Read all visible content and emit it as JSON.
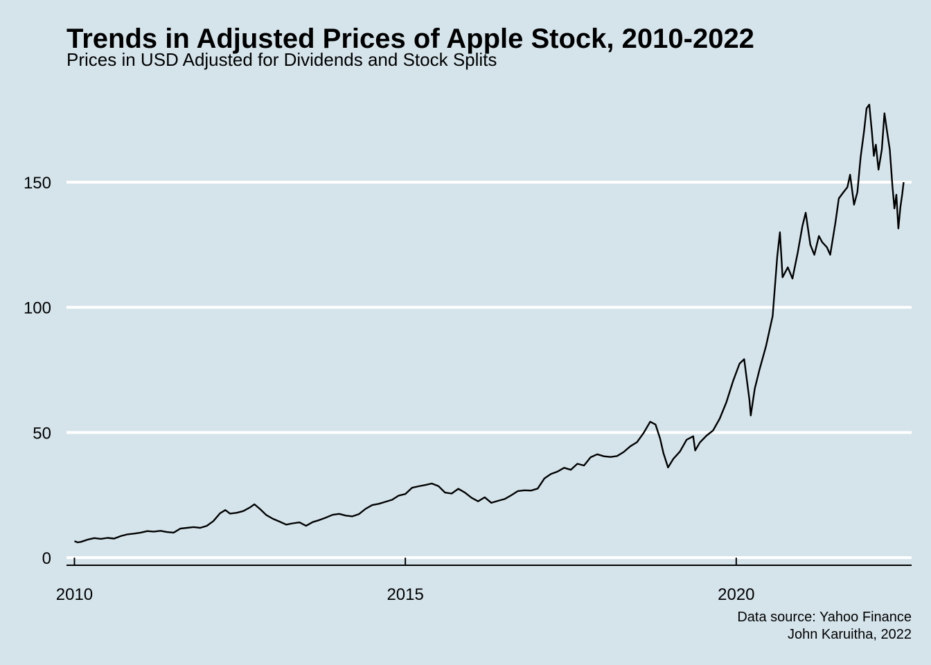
{
  "colors": {
    "background": "#d5e4eb",
    "gridline": "#ffffff",
    "line": "#000000"
  },
  "chart_data": {
    "type": "line",
    "title": "Trends in Adjusted Prices of Apple Stock, 2010-2022",
    "subtitle": "Prices in USD Adjusted for Dividends and Stock Splits",
    "caption_lines": [
      "Data source: Yahoo Finance",
      "John Karuitha, 2022"
    ],
    "xlabel": "",
    "ylabel": "",
    "x_scale": "date (year)",
    "xlim": [
      2009.88,
      2022.65
    ],
    "ylim": [
      0,
      180
    ],
    "x_ticks": [
      2010,
      2015,
      2020
    ],
    "x_tick_labels": [
      "2010",
      "2015",
      "2020"
    ],
    "y_ticks": [
      0,
      50,
      100,
      150
    ],
    "y_tick_labels": [
      "0",
      "50",
      "100",
      "150"
    ],
    "grid": "horizontal major gridlines",
    "legend": "none",
    "series": [
      {
        "points": [
          [
            2010.0,
            6.6
          ],
          [
            2010.05,
            6.1
          ],
          [
            2010.1,
            6.3
          ],
          [
            2010.2,
            7.2
          ],
          [
            2010.3,
            7.8
          ],
          [
            2010.4,
            7.5
          ],
          [
            2010.5,
            7.9
          ],
          [
            2010.6,
            7.6
          ],
          [
            2010.7,
            8.6
          ],
          [
            2010.8,
            9.3
          ],
          [
            2010.9,
            9.6
          ],
          [
            2011.0,
            10.0
          ],
          [
            2011.1,
            10.6
          ],
          [
            2011.2,
            10.4
          ],
          [
            2011.3,
            10.7
          ],
          [
            2011.4,
            10.2
          ],
          [
            2011.5,
            10.0
          ],
          [
            2011.6,
            11.6
          ],
          [
            2011.7,
            11.9
          ],
          [
            2011.8,
            12.2
          ],
          [
            2011.9,
            11.9
          ],
          [
            2012.0,
            12.7
          ],
          [
            2012.1,
            14.6
          ],
          [
            2012.2,
            17.7
          ],
          [
            2012.28,
            19.0
          ],
          [
            2012.35,
            17.6
          ],
          [
            2012.45,
            17.9
          ],
          [
            2012.55,
            18.6
          ],
          [
            2012.65,
            20.0
          ],
          [
            2012.72,
            21.3
          ],
          [
            2012.8,
            19.5
          ],
          [
            2012.9,
            17.0
          ],
          [
            2013.0,
            15.5
          ],
          [
            2013.1,
            14.4
          ],
          [
            2013.2,
            13.2
          ],
          [
            2013.3,
            13.7
          ],
          [
            2013.4,
            14.1
          ],
          [
            2013.5,
            12.7
          ],
          [
            2013.6,
            14.2
          ],
          [
            2013.7,
            15.0
          ],
          [
            2013.8,
            16.0
          ],
          [
            2013.9,
            17.1
          ],
          [
            2014.0,
            17.5
          ],
          [
            2014.1,
            16.8
          ],
          [
            2014.2,
            16.5
          ],
          [
            2014.3,
            17.4
          ],
          [
            2014.4,
            19.5
          ],
          [
            2014.5,
            21.0
          ],
          [
            2014.6,
            21.5
          ],
          [
            2014.7,
            22.3
          ],
          [
            2014.8,
            23.1
          ],
          [
            2014.9,
            24.8
          ],
          [
            2015.0,
            25.4
          ],
          [
            2015.1,
            27.9
          ],
          [
            2015.2,
            28.5
          ],
          [
            2015.3,
            29.0
          ],
          [
            2015.4,
            29.6
          ],
          [
            2015.5,
            28.6
          ],
          [
            2015.6,
            26.0
          ],
          [
            2015.7,
            25.6
          ],
          [
            2015.8,
            27.5
          ],
          [
            2015.9,
            26.0
          ],
          [
            2016.0,
            23.9
          ],
          [
            2016.1,
            22.5
          ],
          [
            2016.2,
            24.1
          ],
          [
            2016.3,
            21.9
          ],
          [
            2016.4,
            22.7
          ],
          [
            2016.5,
            23.4
          ],
          [
            2016.6,
            24.9
          ],
          [
            2016.7,
            26.6
          ],
          [
            2016.8,
            26.9
          ],
          [
            2016.9,
            26.8
          ],
          [
            2017.0,
            27.6
          ],
          [
            2017.1,
            31.6
          ],
          [
            2017.2,
            33.4
          ],
          [
            2017.3,
            34.4
          ],
          [
            2017.4,
            35.9
          ],
          [
            2017.5,
            35.1
          ],
          [
            2017.6,
            37.5
          ],
          [
            2017.7,
            36.8
          ],
          [
            2017.8,
            40.1
          ],
          [
            2017.9,
            41.3
          ],
          [
            2018.0,
            40.5
          ],
          [
            2018.1,
            40.2
          ],
          [
            2018.2,
            40.6
          ],
          [
            2018.3,
            42.2
          ],
          [
            2018.4,
            44.5
          ],
          [
            2018.5,
            46.1
          ],
          [
            2018.6,
            49.8
          ],
          [
            2018.7,
            54.3
          ],
          [
            2018.78,
            53.2
          ],
          [
            2018.85,
            47.5
          ],
          [
            2018.9,
            41.8
          ],
          [
            2018.97,
            36.0
          ],
          [
            2019.05,
            39.5
          ],
          [
            2019.15,
            42.4
          ],
          [
            2019.25,
            47.1
          ],
          [
            2019.35,
            48.5
          ],
          [
            2019.38,
            42.8
          ],
          [
            2019.45,
            46.0
          ],
          [
            2019.55,
            48.7
          ],
          [
            2019.65,
            50.8
          ],
          [
            2019.75,
            55.5
          ],
          [
            2019.85,
            62.0
          ],
          [
            2019.95,
            70.4
          ],
          [
            2020.05,
            77.5
          ],
          [
            2020.12,
            79.3
          ],
          [
            2020.2,
            63.0
          ],
          [
            2020.22,
            56.8
          ],
          [
            2020.28,
            67.5
          ],
          [
            2020.35,
            75.0
          ],
          [
            2020.45,
            84.5
          ],
          [
            2020.55,
            96.5
          ],
          [
            2020.62,
            120.5
          ],
          [
            2020.66,
            130.0
          ],
          [
            2020.7,
            112.0
          ],
          [
            2020.78,
            116.0
          ],
          [
            2020.85,
            111.5
          ],
          [
            2020.93,
            122.0
          ],
          [
            2021.0,
            132.5
          ],
          [
            2021.05,
            137.8
          ],
          [
            2021.12,
            125.0
          ],
          [
            2021.18,
            121.0
          ],
          [
            2021.25,
            128.5
          ],
          [
            2021.3,
            126.0
          ],
          [
            2021.37,
            124.0
          ],
          [
            2021.42,
            121.0
          ],
          [
            2021.5,
            134.0
          ],
          [
            2021.55,
            143.5
          ],
          [
            2021.62,
            146.0
          ],
          [
            2021.68,
            148.0
          ],
          [
            2021.72,
            153.0
          ],
          [
            2021.78,
            141.0
          ],
          [
            2021.83,
            146.0
          ],
          [
            2021.88,
            160.0
          ],
          [
            2021.93,
            170.0
          ],
          [
            2021.97,
            179.5
          ],
          [
            2022.01,
            181.0
          ],
          [
            2022.05,
            170.0
          ],
          [
            2022.08,
            160.5
          ],
          [
            2022.11,
            165.0
          ],
          [
            2022.15,
            155.0
          ],
          [
            2022.2,
            163.0
          ],
          [
            2022.24,
            177.5
          ],
          [
            2022.28,
            170.0
          ],
          [
            2022.32,
            163.0
          ],
          [
            2022.36,
            148.5
          ],
          [
            2022.39,
            139.5
          ],
          [
            2022.42,
            145.0
          ],
          [
            2022.45,
            131.5
          ],
          [
            2022.48,
            140.0
          ],
          [
            2022.51,
            145.5
          ],
          [
            2022.53,
            150.0
          ]
        ]
      }
    ]
  }
}
